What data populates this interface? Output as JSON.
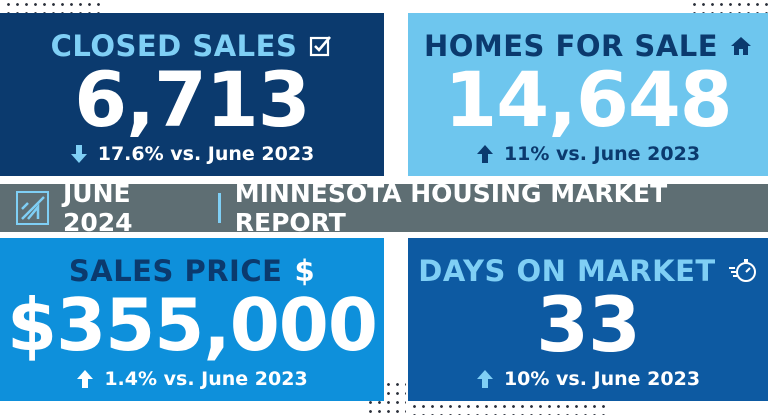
{
  "banner": {
    "date": "JUNE 2024",
    "title": "MINNESOTA HOUSING MARKET REPORT"
  },
  "panels": {
    "closed_sales": {
      "title": "CLOSED SALES",
      "value": "6,713",
      "change": "17.6% vs. June 2023",
      "direction": "down",
      "icon": "checkbox-icon"
    },
    "homes_for_sale": {
      "title": "HOMES FOR SALE",
      "value": "14,648",
      "change": "11% vs. June 2023",
      "direction": "up",
      "icon": "house-icon"
    },
    "sales_price": {
      "title": "SALES PRICE",
      "value": "$355,000",
      "change": "1.4% vs. June 2023",
      "direction": "up",
      "icon": "dollar-icon"
    },
    "days_on_market": {
      "title": "DAYS ON MARKET",
      "value": "33",
      "change": "10% vs. June 2023",
      "direction": "up",
      "icon": "stopwatch-icon"
    }
  },
  "colors": {
    "navy": "#0b3a6e",
    "light_blue": "#6ec6ee",
    "mid_blue": "#0e90db",
    "blue": "#0d5aa2",
    "banner_gray": "#5e6e73"
  }
}
